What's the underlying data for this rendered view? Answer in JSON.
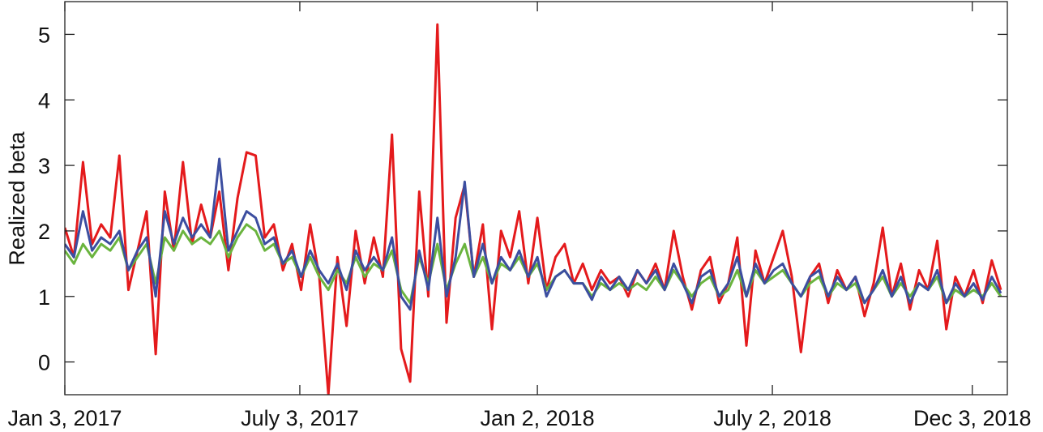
{
  "chart_data": {
    "type": "line",
    "ylabel": "Realized beta",
    "x": [
      "2017-01-03",
      "2017-01-10",
      "2017-01-17",
      "2017-01-24",
      "2017-01-31",
      "2017-02-07",
      "2017-02-14",
      "2017-02-21",
      "2017-02-28",
      "2017-03-07",
      "2017-03-14",
      "2017-03-21",
      "2017-03-28",
      "2017-04-04",
      "2017-04-11",
      "2017-04-18",
      "2017-04-25",
      "2017-05-02",
      "2017-05-09",
      "2017-05-16",
      "2017-05-23",
      "2017-05-30",
      "2017-06-06",
      "2017-06-13",
      "2017-06-20",
      "2017-06-27",
      "2017-07-04",
      "2017-07-11",
      "2017-07-18",
      "2017-07-25",
      "2017-08-01",
      "2017-08-08",
      "2017-08-15",
      "2017-08-22",
      "2017-08-29",
      "2017-09-05",
      "2017-09-12",
      "2017-09-19",
      "2017-09-26",
      "2017-10-03",
      "2017-10-10",
      "2017-10-17",
      "2017-10-24",
      "2017-10-31",
      "2017-11-07",
      "2017-11-14",
      "2017-11-21",
      "2017-11-28",
      "2017-12-05",
      "2017-12-12",
      "2017-12-19",
      "2017-12-26",
      "2018-01-02",
      "2018-01-09",
      "2018-01-16",
      "2018-01-23",
      "2018-01-30",
      "2018-02-06",
      "2018-02-13",
      "2018-02-20",
      "2018-02-27",
      "2018-03-06",
      "2018-03-13",
      "2018-03-20",
      "2018-03-27",
      "2018-04-03",
      "2018-04-10",
      "2018-04-17",
      "2018-04-24",
      "2018-05-01",
      "2018-05-08",
      "2018-05-15",
      "2018-05-22",
      "2018-05-29",
      "2018-06-05",
      "2018-06-12",
      "2018-06-19",
      "2018-06-26",
      "2018-07-03",
      "2018-07-10",
      "2018-07-17",
      "2018-07-24",
      "2018-07-31",
      "2018-08-07",
      "2018-08-14",
      "2018-08-21",
      "2018-08-28",
      "2018-09-04",
      "2018-09-11",
      "2018-09-18",
      "2018-09-25",
      "2018-10-02",
      "2018-10-09",
      "2018-10-16",
      "2018-10-23",
      "2018-10-30",
      "2018-11-06",
      "2018-11-13",
      "2018-11-20",
      "2018-11-27",
      "2018-12-04",
      "2018-12-11",
      "2018-12-18",
      "2018-12-25"
    ],
    "series": [
      {
        "color": "#e41a1c",
        "values": [
          2.05,
          1.6,
          3.05,
          1.8,
          2.1,
          1.9,
          3.15,
          1.1,
          1.7,
          2.3,
          0.12,
          2.6,
          1.7,
          3.05,
          1.8,
          2.4,
          1.9,
          2.6,
          1.4,
          2.5,
          3.2,
          3.15,
          1.9,
          2.1,
          1.4,
          1.8,
          1.1,
          2.1,
          1.3,
          -0.5,
          1.6,
          0.55,
          2.0,
          1.2,
          1.9,
          1.3,
          3.47,
          0.2,
          -0.3,
          2.6,
          1.0,
          5.15,
          0.6,
          2.2,
          2.7,
          1.3,
          2.1,
          0.5,
          2.0,
          1.6,
          2.3,
          1.2,
          2.2,
          1.1,
          1.6,
          1.8,
          1.2,
          1.5,
          1.1,
          1.4,
          1.2,
          1.3,
          1.0,
          1.4,
          1.2,
          1.5,
          1.1,
          2.0,
          1.3,
          0.8,
          1.4,
          1.6,
          0.9,
          1.2,
          1.9,
          0.25,
          1.7,
          1.2,
          1.6,
          2.0,
          1.3,
          0.15,
          1.3,
          1.5,
          0.9,
          1.4,
          1.1,
          1.3,
          0.7,
          1.2,
          2.05,
          1.0,
          1.5,
          0.8,
          1.4,
          1.1,
          1.85,
          0.5,
          1.3,
          1.0,
          1.4,
          0.9,
          1.55,
          1.1
        ]
      },
      {
        "color": "#6ab43e",
        "values": [
          1.7,
          1.5,
          1.8,
          1.6,
          1.8,
          1.7,
          1.9,
          1.4,
          1.6,
          1.8,
          1.2,
          1.9,
          1.7,
          2.0,
          1.8,
          1.9,
          1.8,
          2.0,
          1.6,
          1.9,
          2.1,
          2.0,
          1.7,
          1.8,
          1.5,
          1.6,
          1.3,
          1.6,
          1.3,
          1.1,
          1.4,
          1.2,
          1.6,
          1.3,
          1.5,
          1.4,
          1.7,
          1.1,
          0.9,
          1.6,
          1.2,
          1.8,
          1.1,
          1.5,
          1.8,
          1.3,
          1.6,
          1.2,
          1.5,
          1.4,
          1.6,
          1.3,
          1.5,
          1.1,
          1.3,
          1.4,
          1.2,
          1.2,
          1.0,
          1.2,
          1.1,
          1.2,
          1.1,
          1.2,
          1.1,
          1.3,
          1.1,
          1.4,
          1.2,
          1.0,
          1.2,
          1.3,
          1.0,
          1.1,
          1.4,
          1.0,
          1.4,
          1.2,
          1.3,
          1.4,
          1.2,
          1.0,
          1.2,
          1.3,
          1.0,
          1.2,
          1.1,
          1.2,
          0.9,
          1.1,
          1.3,
          1.0,
          1.2,
          1.0,
          1.2,
          1.1,
          1.3,
          0.9,
          1.1,
          1.0,
          1.1,
          1.0,
          1.2,
          1.0
        ]
      },
      {
        "color": "#3c4ea0",
        "values": [
          1.8,
          1.6,
          2.3,
          1.7,
          1.9,
          1.8,
          2.0,
          1.4,
          1.7,
          1.9,
          1.0,
          2.3,
          1.8,
          2.2,
          1.9,
          2.1,
          1.9,
          3.1,
          1.7,
          2.0,
          2.3,
          2.2,
          1.8,
          1.9,
          1.5,
          1.7,
          1.3,
          1.7,
          1.4,
          1.2,
          1.5,
          1.1,
          1.7,
          1.4,
          1.6,
          1.4,
          1.9,
          1.0,
          0.8,
          1.7,
          1.1,
          2.2,
          1.0,
          1.6,
          2.75,
          1.3,
          1.8,
          1.2,
          1.6,
          1.4,
          1.7,
          1.3,
          1.6,
          1.0,
          1.3,
          1.4,
          1.2,
          1.2,
          0.95,
          1.3,
          1.1,
          1.3,
          1.1,
          1.4,
          1.2,
          1.4,
          1.1,
          1.5,
          1.2,
          0.9,
          1.3,
          1.4,
          1.0,
          1.2,
          1.6,
          1.0,
          1.5,
          1.2,
          1.4,
          1.5,
          1.2,
          1.0,
          1.3,
          1.4,
          1.0,
          1.3,
          1.1,
          1.3,
          0.9,
          1.1,
          1.4,
          1.0,
          1.3,
          0.9,
          1.2,
          1.1,
          1.4,
          0.9,
          1.2,
          1.0,
          1.2,
          0.95,
          1.3,
          1.05
        ]
      }
    ],
    "xlim": [
      "2017-01-03",
      "2018-12-30"
    ],
    "xticks": [
      {
        "value": "2017-01-03",
        "label": "Jan 3, 2017"
      },
      {
        "value": "2017-07-03",
        "label": "July 3, 2017"
      },
      {
        "value": "2018-01-02",
        "label": "Jan 2, 2018"
      },
      {
        "value": "2018-07-02",
        "label": "July 2, 2018"
      },
      {
        "value": "2018-12-03",
        "label": "Dec 3, 2018"
      }
    ],
    "ylim": [
      -0.5,
      5.5
    ],
    "yticks": [
      0,
      1,
      2,
      3,
      4,
      5
    ],
    "grid": false
  }
}
